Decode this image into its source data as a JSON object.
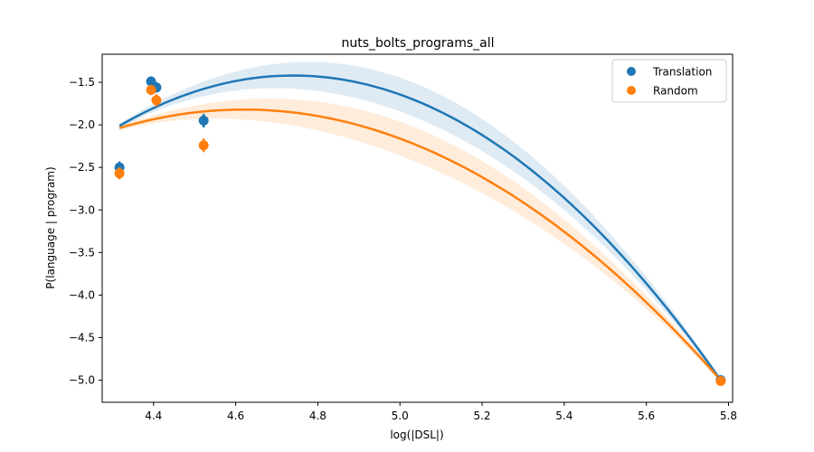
{
  "chart_data": {
    "type": "scatter",
    "title": "nuts_bolts_programs_all",
    "xlabel": "log(|DSL|)",
    "ylabel": "P(language | program)",
    "xlim": [
      4.275,
      5.81
    ],
    "ylim": [
      -5.26,
      -1.17
    ],
    "xticks": [
      "4.4",
      "4.6",
      "4.8",
      "5.0",
      "5.2",
      "5.4",
      "5.6",
      "5.8"
    ],
    "yticks": [
      "−1.5",
      "−2.0",
      "−2.5",
      "−3.0",
      "−3.5",
      "−4.0",
      "−4.5",
      "−5.0"
    ],
    "grid": false,
    "legend_position": "top-right",
    "series": [
      {
        "name": "Translation",
        "color": "#1f77b4",
        "band_color": "#c6dbef",
        "points": [
          {
            "x": 4.317,
            "y": -2.5,
            "err": 0.07
          },
          {
            "x": 4.394,
            "y": -1.49,
            "err": 0.06
          },
          {
            "x": 4.407,
            "y": -1.56,
            "err": 0.06
          },
          {
            "x": 4.522,
            "y": -1.95,
            "err": 0.08
          },
          {
            "x": 5.781,
            "y": -5.0,
            "err": 0.02
          }
        ],
        "fit": {
          "vertex_x": 4.74,
          "vertex_y": -1.42,
          "anchor_x": 5.781,
          "anchor_y": -5.0
        },
        "band": {
          "upper_at_vertex": 0.09,
          "lower_at_vertex": 0.09,
          "max_half_width": 0.17
        }
      },
      {
        "name": "Random",
        "color": "#ff7f0e",
        "band_color": "#fdd8b5",
        "points": [
          {
            "x": 4.317,
            "y": -2.57,
            "err": 0.07
          },
          {
            "x": 4.394,
            "y": -1.59,
            "err": 0.06
          },
          {
            "x": 4.407,
            "y": -1.71,
            "err": 0.07
          },
          {
            "x": 4.522,
            "y": -2.24,
            "err": 0.08
          },
          {
            "x": 5.781,
            "y": -5.01,
            "err": 0.02
          }
        ],
        "fit": {
          "vertex_x": 4.62,
          "vertex_y": -1.82,
          "anchor_x": 5.781,
          "anchor_y": -5.0
        },
        "band": {
          "upper_at_vertex": 0.08,
          "lower_at_vertex": 0.08,
          "max_half_width": 0.17
        }
      }
    ]
  }
}
